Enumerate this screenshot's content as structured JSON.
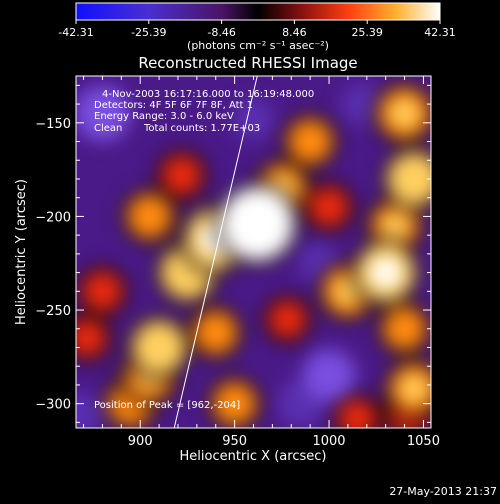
{
  "colorbar": {
    "tick_labels": [
      "-42.31",
      "-25.39",
      "-8.46",
      "8.46",
      "25.39",
      "42.31"
    ],
    "range": [
      -42.31,
      42.31
    ],
    "units": "(photons cm⁻² s⁻¹ asec⁻²)"
  },
  "chart_data": {
    "type": "heatmap",
    "title": "Reconstructed RHESSI Image",
    "xlabel": "Heliocentric X (arcsec)",
    "ylabel": "Heliocentric Y (arcsec)",
    "xlim": [
      866,
      1054
    ],
    "ylim": [
      -313,
      -125
    ],
    "x_ticks": [
      900,
      950,
      1000,
      1050
    ],
    "y_ticks": [
      -300,
      -250,
      -200,
      -150
    ],
    "annotations": [
      "4-Nov-2003 16:17:16.000 to 16:19:48.000",
      "Detectors: 4F 5F 6F 7F 8F, Att 1",
      "Energy Range: 3.0 - 6.0 keV",
      "Clean",
      "Total counts: 1.77E+03"
    ],
    "peak_label": "Position of Peak = [962,-204]",
    "peak": [
      962,
      -204
    ],
    "limb_line": [
      [
        918,
        -313
      ],
      [
        962,
        -125
      ]
    ],
    "blobs": [
      {
        "x": 962,
        "y": -204,
        "v": 42
      },
      {
        "x": 940,
        "y": -212,
        "v": 30
      },
      {
        "x": 925,
        "y": -230,
        "v": 24
      },
      {
        "x": 910,
        "y": -270,
        "v": 24
      },
      {
        "x": 905,
        "y": -285,
        "v": 20
      },
      {
        "x": 895,
        "y": -300,
        "v": 16
      },
      {
        "x": 940,
        "y": -262,
        "v": 15
      },
      {
        "x": 950,
        "y": -300,
        "v": 15
      },
      {
        "x": 905,
        "y": -200,
        "v": 16
      },
      {
        "x": 922,
        "y": -178,
        "v": 12
      },
      {
        "x": 975,
        "y": -185,
        "v": 18
      },
      {
        "x": 990,
        "y": -160,
        "v": 16
      },
      {
        "x": 1000,
        "y": -195,
        "v": 12
      },
      {
        "x": 978,
        "y": -255,
        "v": 10
      },
      {
        "x": 1040,
        "y": -145,
        "v": 22
      },
      {
        "x": 1045,
        "y": -180,
        "v": 24
      },
      {
        "x": 1035,
        "y": -205,
        "v": 18
      },
      {
        "x": 1030,
        "y": -230,
        "v": 28
      },
      {
        "x": 1010,
        "y": -240,
        "v": 20
      },
      {
        "x": 1040,
        "y": -260,
        "v": 15
      },
      {
        "x": 1045,
        "y": -292,
        "v": 20
      },
      {
        "x": 1042,
        "y": -305,
        "v": 14
      },
      {
        "x": 1015,
        "y": -308,
        "v": 10
      },
      {
        "x": 880,
        "y": -240,
        "v": 12
      },
      {
        "x": 872,
        "y": -265,
        "v": 10
      },
      {
        "x": 880,
        "y": -145,
        "v": -25
      },
      {
        "x": 1000,
        "y": -285,
        "v": -22
      },
      {
        "x": 985,
        "y": -300,
        "v": -18
      },
      {
        "x": 960,
        "y": -148,
        "v": -12
      },
      {
        "x": 1018,
        "y": -140,
        "v": -14
      },
      {
        "x": 870,
        "y": -305,
        "v": -12
      },
      {
        "x": 995,
        "y": -225,
        "v": -12
      }
    ]
  },
  "footer": {
    "timestamp": "27-May-2013 21:37"
  }
}
